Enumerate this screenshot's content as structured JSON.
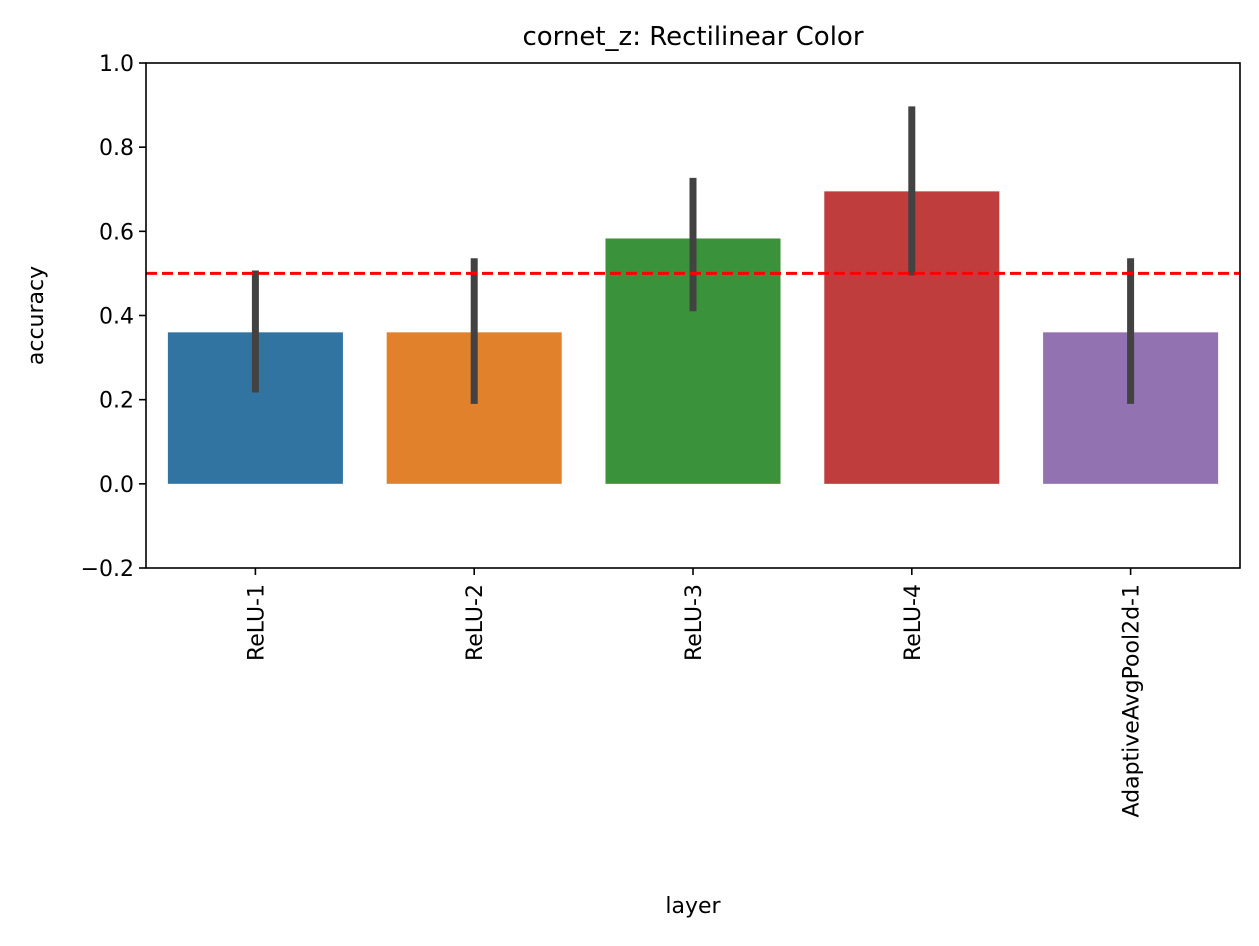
{
  "chart_data": {
    "type": "bar",
    "title": "cornet_z: Rectilinear Color",
    "xlabel": "layer",
    "ylabel": "accuracy",
    "categories": [
      "ReLU-1",
      "ReLU-2",
      "ReLU-3",
      "ReLU-4",
      "AdaptiveAvgPool2d-1"
    ],
    "values": [
      0.36,
      0.36,
      0.583,
      0.695,
      0.36
    ],
    "error_bars": [
      {
        "low": 0.217,
        "high": 0.507
      },
      {
        "low": 0.19,
        "high": 0.536
      },
      {
        "low": 0.41,
        "high": 0.727
      },
      {
        "low": 0.495,
        "high": 0.897
      },
      {
        "low": 0.19,
        "high": 0.536
      }
    ],
    "colors": [
      "#3274a1",
      "#e1812c",
      "#3a923a",
      "#c03d3e",
      "#9372b2"
    ],
    "errorbar_color": "#424242",
    "reference_line": {
      "y": 0.5,
      "color": "#ff0000",
      "style": "dashed"
    },
    "ylim": [
      -0.2,
      1.0
    ],
    "yticks": [
      -0.2,
      0.0,
      0.2,
      0.4,
      0.6,
      0.8,
      1.0
    ],
    "ytick_labels": [
      "−0.2",
      "0.0",
      "0.2",
      "0.4",
      "0.6",
      "0.8",
      "1.0"
    ],
    "grid": false,
    "legend": "none"
  }
}
